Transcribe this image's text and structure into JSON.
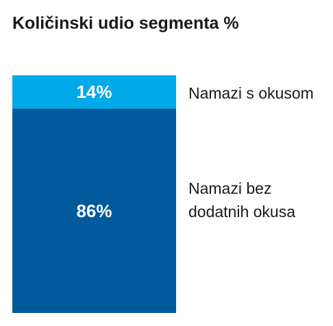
{
  "title": "Količinski udio segmenta %",
  "chart_data": {
    "type": "bar",
    "stacked": true,
    "orientation": "vertical",
    "categories": [
      ""
    ],
    "series": [
      {
        "name": "Namazi bez dodatnih okusa",
        "name_lines": [
          "Namazi bez",
          "dodatnih okusa"
        ],
        "values": [
          86
        ],
        "value_label": "86%",
        "color": "#005a9c"
      },
      {
        "name": "Namazi s okusom",
        "name_lines": [
          "Namazi s okusom"
        ],
        "values": [
          14
        ],
        "value_label": "14%",
        "color": "#00a9e8"
      }
    ],
    "unit": "%",
    "ylim": [
      0,
      100
    ],
    "grid": false,
    "legend": "right, inline labels"
  }
}
